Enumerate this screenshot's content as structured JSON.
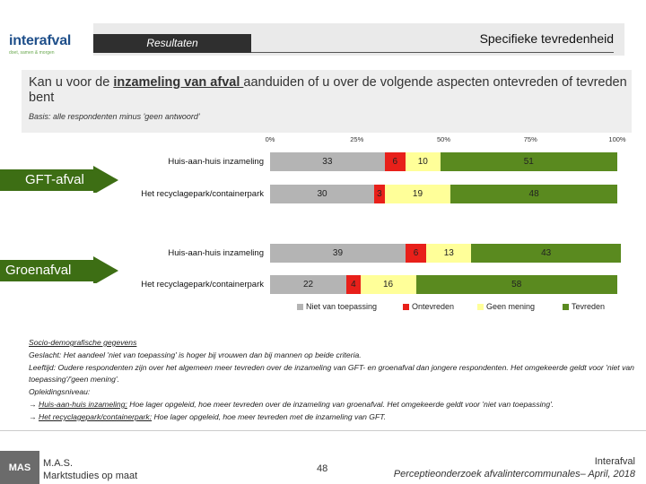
{
  "header": {
    "logo_text_main": "interafval",
    "logo_text_sub": "doet, samen & morgen",
    "section_label": "Resultaten",
    "page_title": "Specifieke tevredenheid"
  },
  "question": {
    "prefix": "Kan u voor de ",
    "emphasis": "inzameling van afval ",
    "suffix": "aanduiden of u over de volgende aspecten ontevreden of tevreden bent",
    "basis": "Basis: alle respondenten minus 'geen antwoord'"
  },
  "chart_data": {
    "type": "bar",
    "orientation": "horizontal",
    "stacked": true,
    "x_tick_labels": [
      "0%",
      "25%",
      "50%",
      "75%",
      "100%"
    ],
    "xlim": [
      0,
      100
    ],
    "groups": [
      "GFT-afval",
      "Groenafval"
    ],
    "categories": [
      "Huis-aan-huis inzameling",
      "Het recyclagepark/containerpark",
      "Huis-aan-huis inzameling",
      "Het recyclagepark/containerpark"
    ],
    "series": [
      {
        "name": "Niet van toepassing",
        "color": "#b4b4b4",
        "values": [
          33,
          30,
          39,
          22
        ]
      },
      {
        "name": "Ontevreden",
        "color": "#e8201a",
        "values": [
          6,
          3,
          6,
          4
        ]
      },
      {
        "name": "Geen mening",
        "color": "#ffff99",
        "values": [
          10,
          19,
          13,
          16
        ]
      },
      {
        "name": "Tevreden",
        "color": "#5a8a1f",
        "values": [
          51,
          48,
          43,
          58
        ]
      }
    ]
  },
  "notes": {
    "title": "Socio-demografische gegevens",
    "gender": "Geslacht: Het aandeel 'niet van toepassing' is hoger bij vrouwen dan bij mannen op beide criteria.",
    "age": "Leeftijd: Oudere respondenten zijn over het algemeen meer tevreden over de inzameling van GFT- en groenafval dan jongere respondenten. Het omgekeerde geldt voor 'niet van toepassing'/'geen mening'.",
    "education_title": "Opleidingsniveau:",
    "edu1_label": "Huis-aan-huis inzameling:",
    "edu1_text": " Hoe lager opgeleid, hoe meer tevreden over de inzameling van groenafval. Het omgekeerde geldt voor 'niet van toepassing'.",
    "edu2_label": "Het recyclagepark/containerpark:",
    "edu2_text": " Hoe lager opgeleid, hoe meer tevreden met de inzameling van GFT.",
    "arrow": "→"
  },
  "footer": {
    "mas_logo": "MAS",
    "mas_line1": "M.A.S.",
    "mas_line2": "Marktstudies op maat",
    "page_number": "48",
    "client": "Interafval",
    "report": "Perceptieonderzoek afvalintercommunales– April, 2018"
  }
}
